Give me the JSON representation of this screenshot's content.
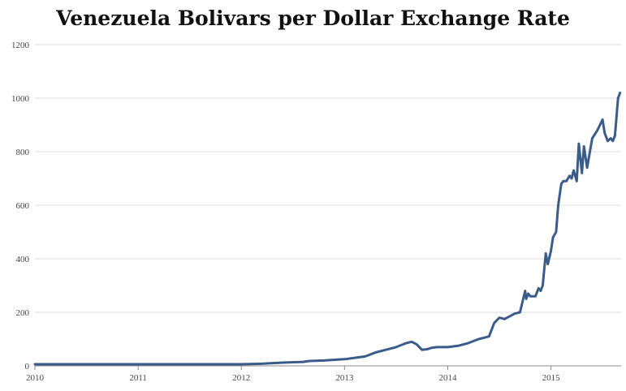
{
  "chart_data": {
    "type": "line",
    "title": "Venezuela Bolivars per Dollar Exchange Rate",
    "xlabel": "",
    "ylabel": "",
    "xlim": [
      2010.0,
      2015.68
    ],
    "ylim": [
      0,
      1200
    ],
    "yticks": [
      0,
      200,
      400,
      600,
      800,
      1000,
      1200
    ],
    "xticks": [
      2010,
      2011,
      2012,
      2013,
      2014,
      2015
    ],
    "grid": true,
    "legend": "none",
    "colors": {
      "line": "#3b5c8a",
      "grid": "#dddddd",
      "axis": "#888888"
    },
    "series": [
      {
        "x": [
          2010.0,
          2010.5,
          2011.0,
          2011.5,
          2012.0,
          2012.2,
          2012.4,
          2012.6,
          2012.65,
          2012.8,
          2012.95,
          2013.0,
          2013.1,
          2013.2,
          2013.3,
          2013.4,
          2013.5,
          2013.6,
          2013.65,
          2013.7,
          2013.75,
          2013.8,
          2013.85,
          2013.9,
          2014.0,
          2014.1,
          2014.2,
          2014.3,
          2014.35,
          2014.4,
          2014.45,
          2014.5,
          2014.55,
          2014.6,
          2014.65,
          2014.7,
          2014.75,
          2014.76,
          2014.78,
          2014.8,
          2014.85,
          2014.88,
          2014.9,
          2014.92,
          2014.95,
          2014.97,
          2015.0,
          2015.02,
          2015.05,
          2015.07,
          2015.1,
          2015.12,
          2015.15,
          2015.18,
          2015.2,
          2015.22,
          2015.25,
          2015.27,
          2015.3,
          2015.32,
          2015.35,
          2015.4,
          2015.45,
          2015.5,
          2015.52,
          2015.55,
          2015.58,
          2015.6,
          2015.62,
          2015.65,
          2015.67
        ],
        "y": [
          6,
          6,
          6,
          6,
          6,
          8,
          12,
          15,
          18,
          20,
          24,
          25,
          30,
          35,
          50,
          60,
          70,
          85,
          90,
          80,
          60,
          62,
          68,
          70,
          70,
          75,
          85,
          100,
          105,
          110,
          160,
          180,
          175,
          185,
          195,
          200,
          280,
          250,
          270,
          260,
          260,
          290,
          280,
          300,
          420,
          380,
          430,
          480,
          500,
          600,
          680,
          690,
          690,
          710,
          700,
          730,
          690,
          830,
          720,
          820,
          740,
          850,
          880,
          920,
          870,
          840,
          850,
          840,
          860,
          1000,
          1020
        ]
      }
    ]
  }
}
